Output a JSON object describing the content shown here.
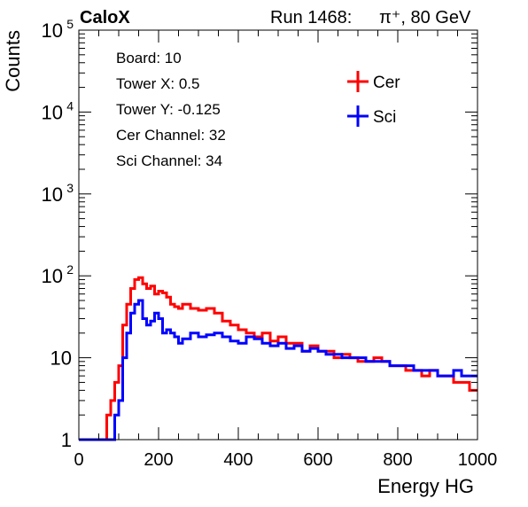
{
  "header": {
    "brand": "CaloX",
    "run_label": "Run 1468:",
    "particle": "π⁺, 80 GeV"
  },
  "info": {
    "board": "Board: 10",
    "tower_x": "Tower X: 0.5",
    "tower_y": "Tower Y: -0.125",
    "cer_channel": "Cer Channel: 32",
    "sci_channel": "Sci Channel: 34"
  },
  "chart_data": {
    "type": "line",
    "title": "",
    "xlabel": "Energy HG",
    "ylabel": "Counts",
    "xlim": [
      0,
      1000
    ],
    "ylim": [
      1,
      100000
    ],
    "y_scale": "log",
    "x_ticks": [
      "0",
      "200",
      "400",
      "600",
      "800",
      "1000"
    ],
    "y_ticks": [
      {
        "value": 1,
        "label": "1"
      },
      {
        "value": 10,
        "label": "10"
      },
      {
        "value": 100,
        "label": "10",
        "exp": "2"
      },
      {
        "value": 1000,
        "label": "10",
        "exp": "3"
      },
      {
        "value": 10000,
        "label": "10",
        "exp": "4"
      },
      {
        "value": 100000,
        "label": "10",
        "exp": "5"
      }
    ],
    "legend_position": "top-right",
    "series": [
      {
        "name": "Cer",
        "color": "#ff0000",
        "x": [
          0,
          20,
          40,
          60,
          70,
          80,
          90,
          100,
          110,
          120,
          130,
          140,
          150,
          160,
          170,
          180,
          190,
          200,
          210,
          220,
          230,
          240,
          250,
          260,
          280,
          300,
          320,
          340,
          360,
          380,
          400,
          420,
          440,
          460,
          480,
          500,
          520,
          540,
          560,
          580,
          600,
          620,
          640,
          660,
          680,
          700,
          720,
          740,
          760,
          780,
          800,
          820,
          840,
          860,
          880,
          900,
          920,
          940,
          960,
          980,
          1000
        ],
        "y": [
          1,
          1,
          1,
          1,
          2,
          3,
          5,
          8,
          25,
          45,
          70,
          90,
          95,
          80,
          70,
          75,
          60,
          65,
          62,
          55,
          45,
          42,
          40,
          45,
          40,
          38,
          40,
          35,
          28,
          25,
          22,
          20,
          18,
          20,
          16,
          18,
          15,
          15,
          12,
          14,
          12,
          12,
          10,
          11,
          10,
          9,
          9,
          10,
          9,
          8,
          8,
          7,
          7,
          6,
          7,
          6,
          6,
          5,
          5,
          4,
          4
        ]
      },
      {
        "name": "Sci",
        "color": "#0000ff",
        "x": [
          0,
          20,
          40,
          60,
          70,
          80,
          90,
          100,
          110,
          120,
          130,
          140,
          150,
          160,
          170,
          180,
          190,
          200,
          210,
          220,
          230,
          240,
          250,
          260,
          280,
          300,
          320,
          340,
          360,
          380,
          400,
          420,
          440,
          460,
          480,
          500,
          520,
          540,
          560,
          580,
          600,
          620,
          640,
          660,
          680,
          700,
          720,
          740,
          760,
          780,
          800,
          820,
          840,
          860,
          880,
          900,
          920,
          940,
          960,
          980,
          1000
        ],
        "y": [
          1,
          1,
          1,
          1,
          1,
          1,
          2,
          3,
          10,
          20,
          35,
          45,
          50,
          30,
          25,
          28,
          35,
          30,
          20,
          22,
          20,
          18,
          15,
          17,
          20,
          18,
          19,
          20,
          18,
          16,
          15,
          18,
          17,
          15,
          14,
          15,
          13,
          14,
          12,
          13,
          12,
          11,
          11,
          10,
          10,
          10,
          9,
          9,
          9,
          8,
          8,
          8,
          7,
          7,
          7,
          6,
          6,
          7,
          6,
          6,
          6
        ]
      }
    ]
  }
}
